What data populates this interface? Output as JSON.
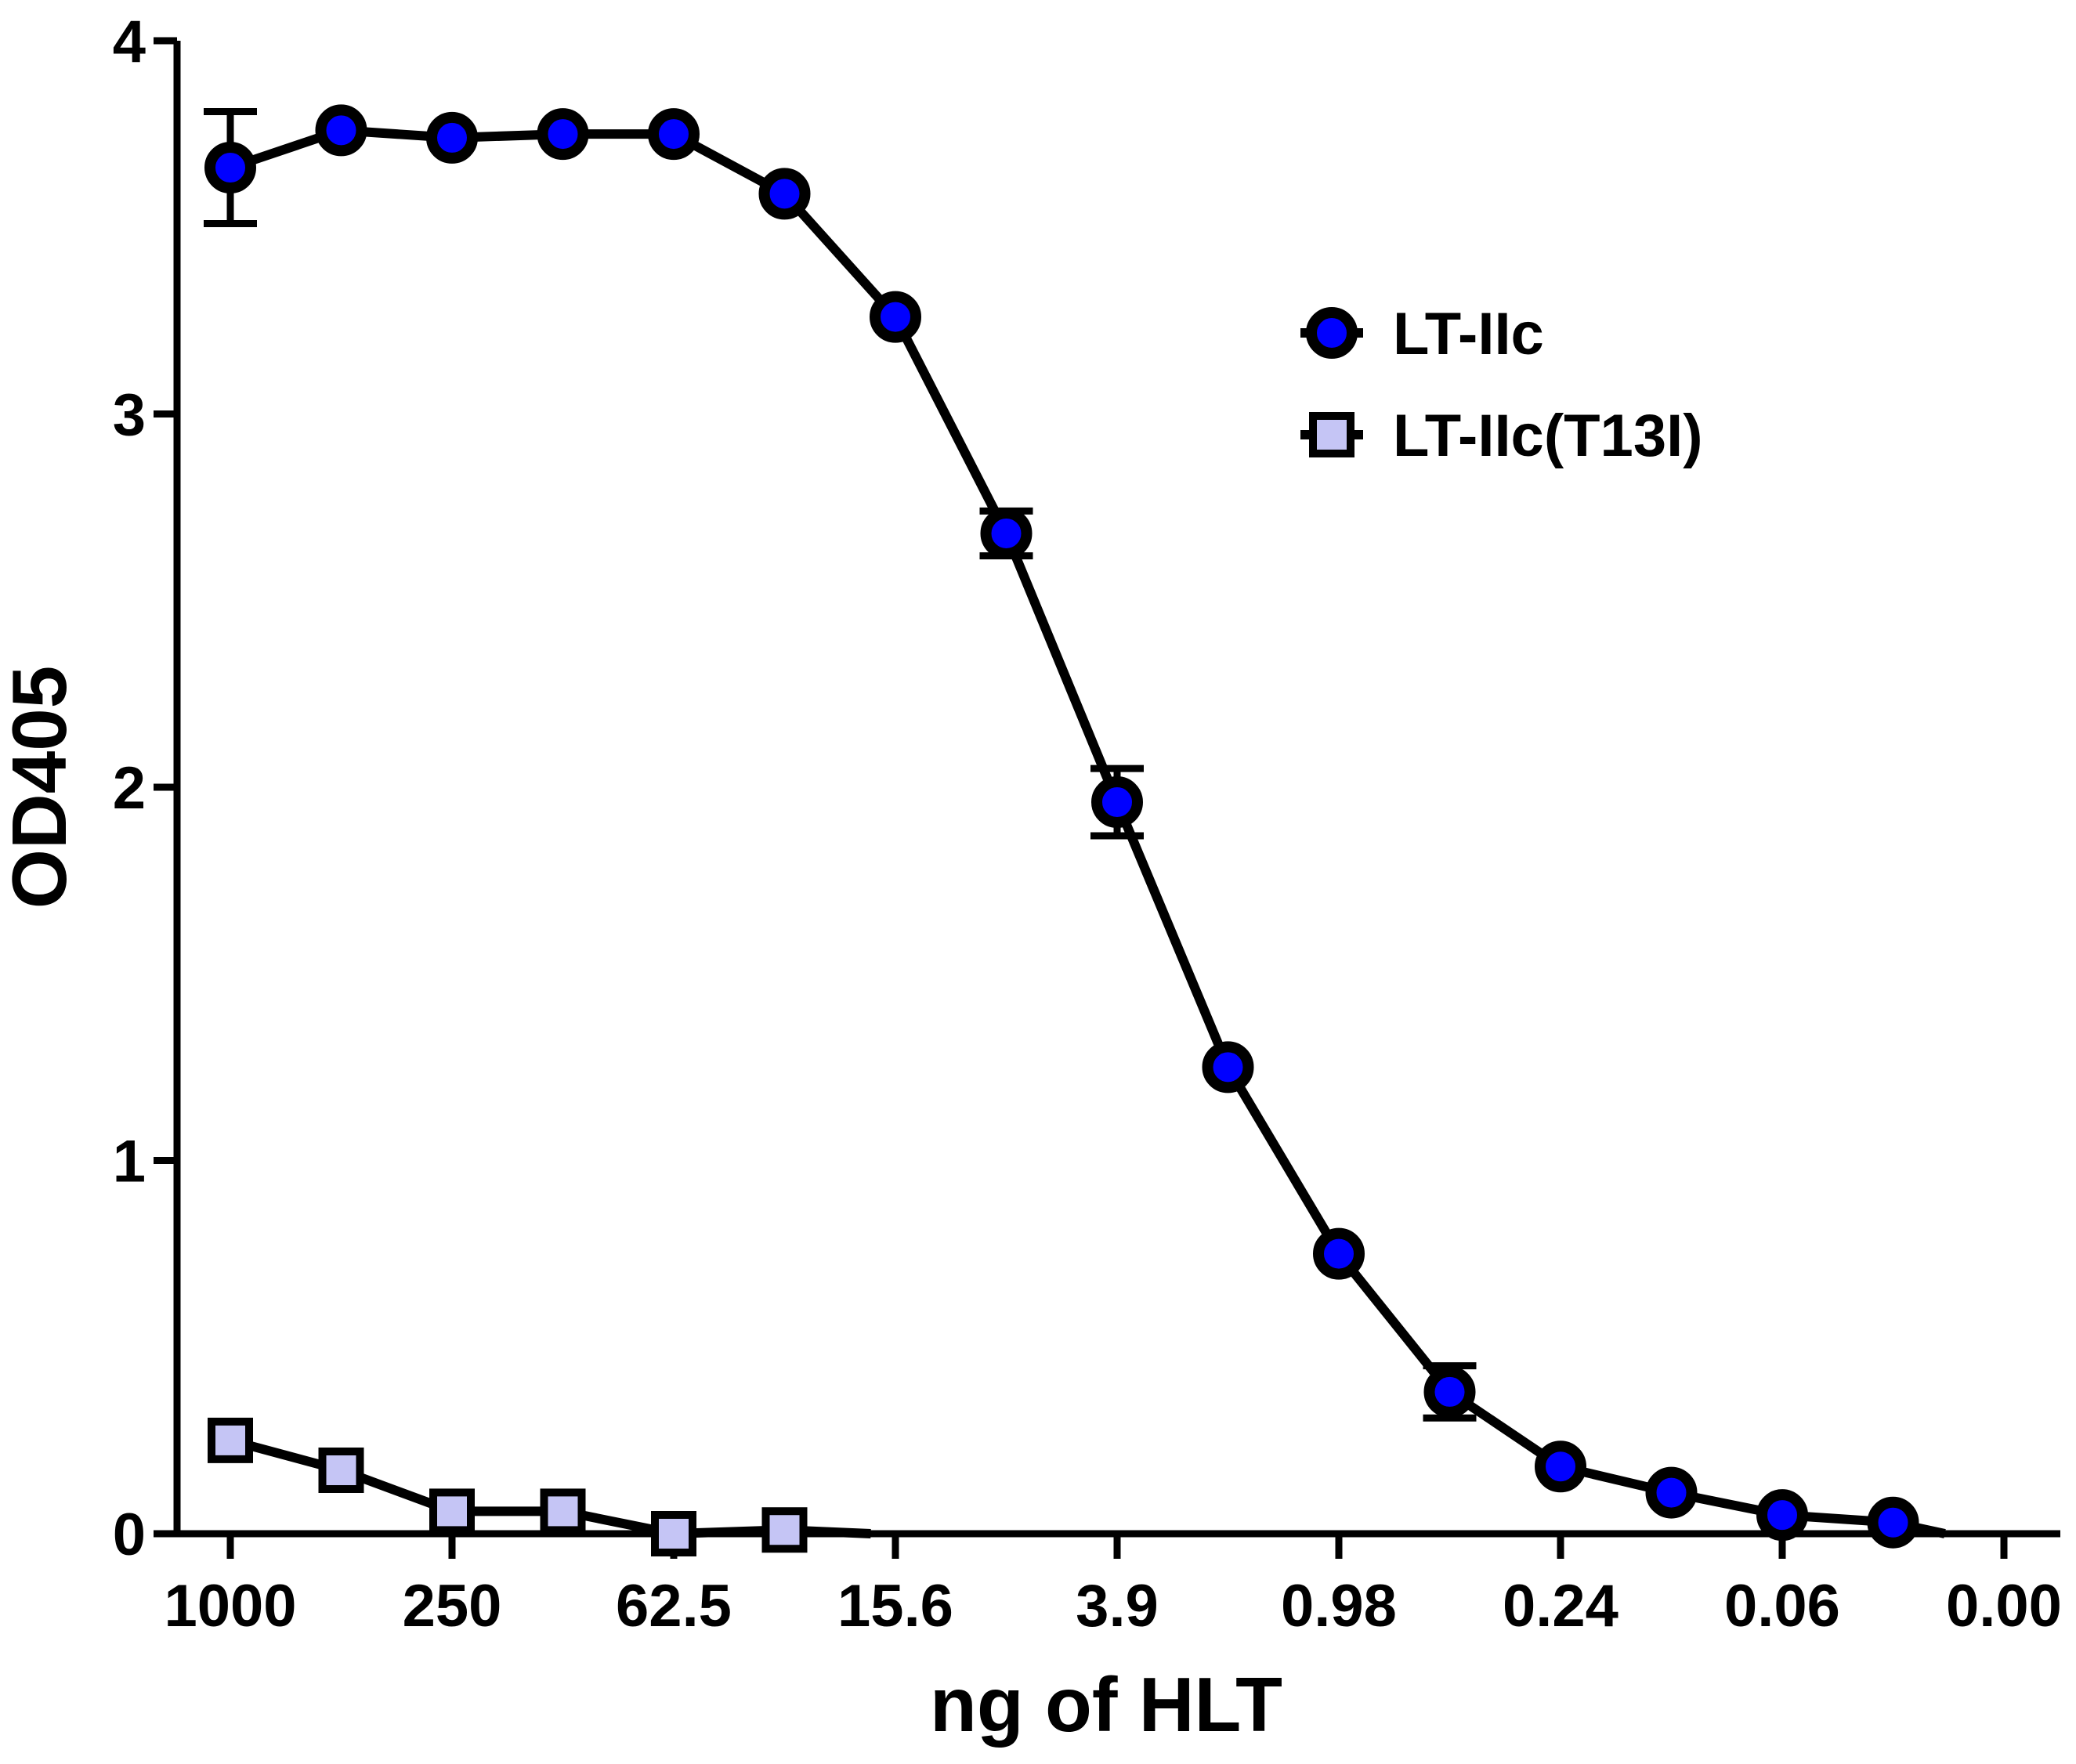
{
  "chart_data": {
    "type": "line",
    "title": "",
    "xlabel": "ng of HLT",
    "ylabel": "OD405",
    "ylim": [
      0,
      4
    ],
    "yticks": [
      "0",
      "1",
      "2",
      "3",
      "4"
    ],
    "xtick_labels": [
      "1000",
      "250",
      "62.5",
      "15.6",
      "3.9",
      "0.98",
      "0.24",
      "0.06",
      "0.00"
    ],
    "legend_position": "top-right",
    "series": [
      {
        "name": "LT-IIc",
        "marker": "circle",
        "color": "#0000ff",
        "x_index": [
          0,
          1,
          2,
          3,
          4,
          5,
          6,
          7,
          8,
          9,
          10,
          11,
          12,
          13,
          14,
          15
        ],
        "values": [
          3.66,
          3.76,
          3.74,
          3.75,
          3.75,
          3.59,
          3.26,
          2.68,
          1.96,
          1.25,
          0.75,
          0.38,
          0.18,
          0.11,
          0.05,
          0.03
        ],
        "error": [
          0.15,
          0,
          0,
          0,
          0,
          0,
          0,
          0.06,
          0.09,
          0,
          0,
          0.07,
          0,
          0,
          0,
          0
        ]
      },
      {
        "name": "LT-IIc(T13I)",
        "marker": "square",
        "color": "#c5c5f5",
        "x_index": [
          0,
          1,
          2,
          3,
          4,
          5
        ],
        "values": [
          0.25,
          0.17,
          0.06,
          0.06,
          0.0,
          0.01
        ]
      }
    ]
  }
}
